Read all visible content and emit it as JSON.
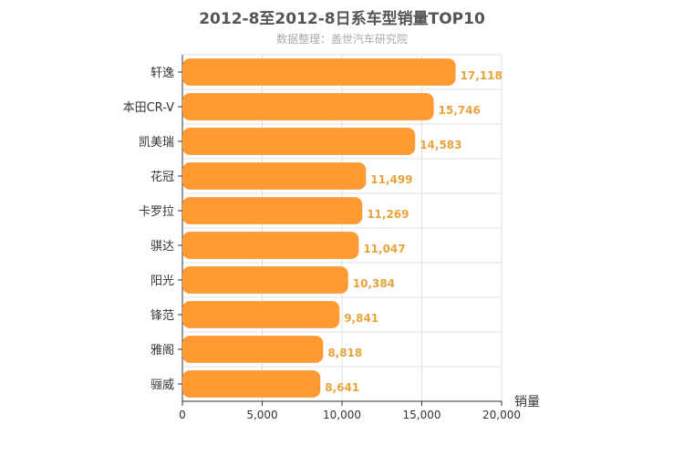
{
  "chart_data": {
    "type": "bar",
    "orientation": "horizontal",
    "title": "2012-8至2012-8日系车型销量TOP10",
    "subtitle": "数据整理：盖世汽车研究院",
    "categories": [
      "轩逸",
      "本田CR-V",
      "凯美瑞",
      "花冠",
      "卡罗拉",
      "骐达",
      "阳光",
      "锋范",
      "雅阁",
      "骊威"
    ],
    "values": [
      17118,
      15746,
      14583,
      11499,
      11269,
      11047,
      10384,
      9841,
      8818,
      8641
    ],
    "value_labels": [
      "17,118",
      "15,746",
      "14,583",
      "11,499",
      "11,269",
      "11,047",
      "10,384",
      "9,841",
      "8,818",
      "8,641"
    ],
    "xlabel": "销量",
    "ylabel": "",
    "xlim": [
      0,
      20000
    ],
    "xticks": [
      0,
      5000,
      10000,
      15000,
      20000
    ],
    "xtick_labels": [
      "0",
      "5,000",
      "10,000",
      "15,000",
      "20,000"
    ],
    "grid": true,
    "bar_color": "#ff9a33"
  }
}
